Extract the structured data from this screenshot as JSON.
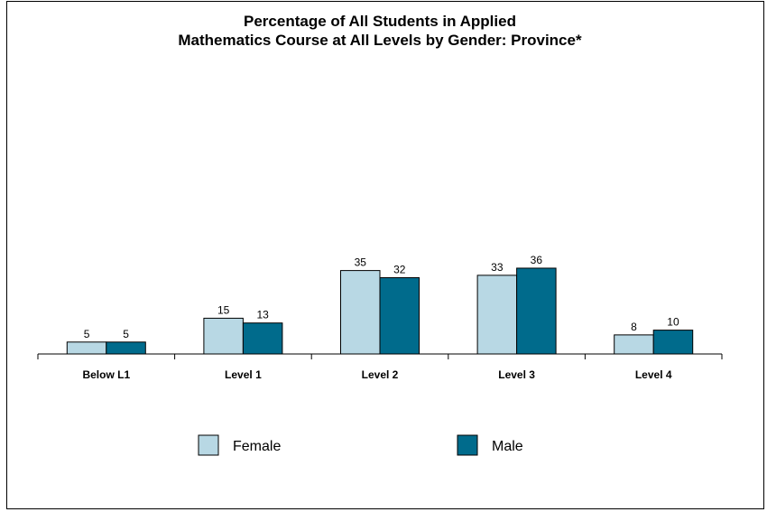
{
  "chart_data": {
    "type": "bar",
    "title": [
      "Percentage of All Students in Applied",
      "Mathematics Course at All Levels by Gender: Province*"
    ],
    "categories": [
      "Below L1",
      "Level 1",
      "Level 2",
      "Level 3",
      "Level 4"
    ],
    "series": [
      {
        "name": "Female",
        "color": "#b8d8e4",
        "values": [
          5,
          15,
          35,
          33,
          8
        ]
      },
      {
        "name": "Male",
        "color": "#006b8c",
        "values": [
          5,
          13,
          32,
          36,
          10
        ]
      }
    ],
    "ylim": [
      0,
      100
    ],
    "grid": false,
    "legend_position": "bottom"
  }
}
